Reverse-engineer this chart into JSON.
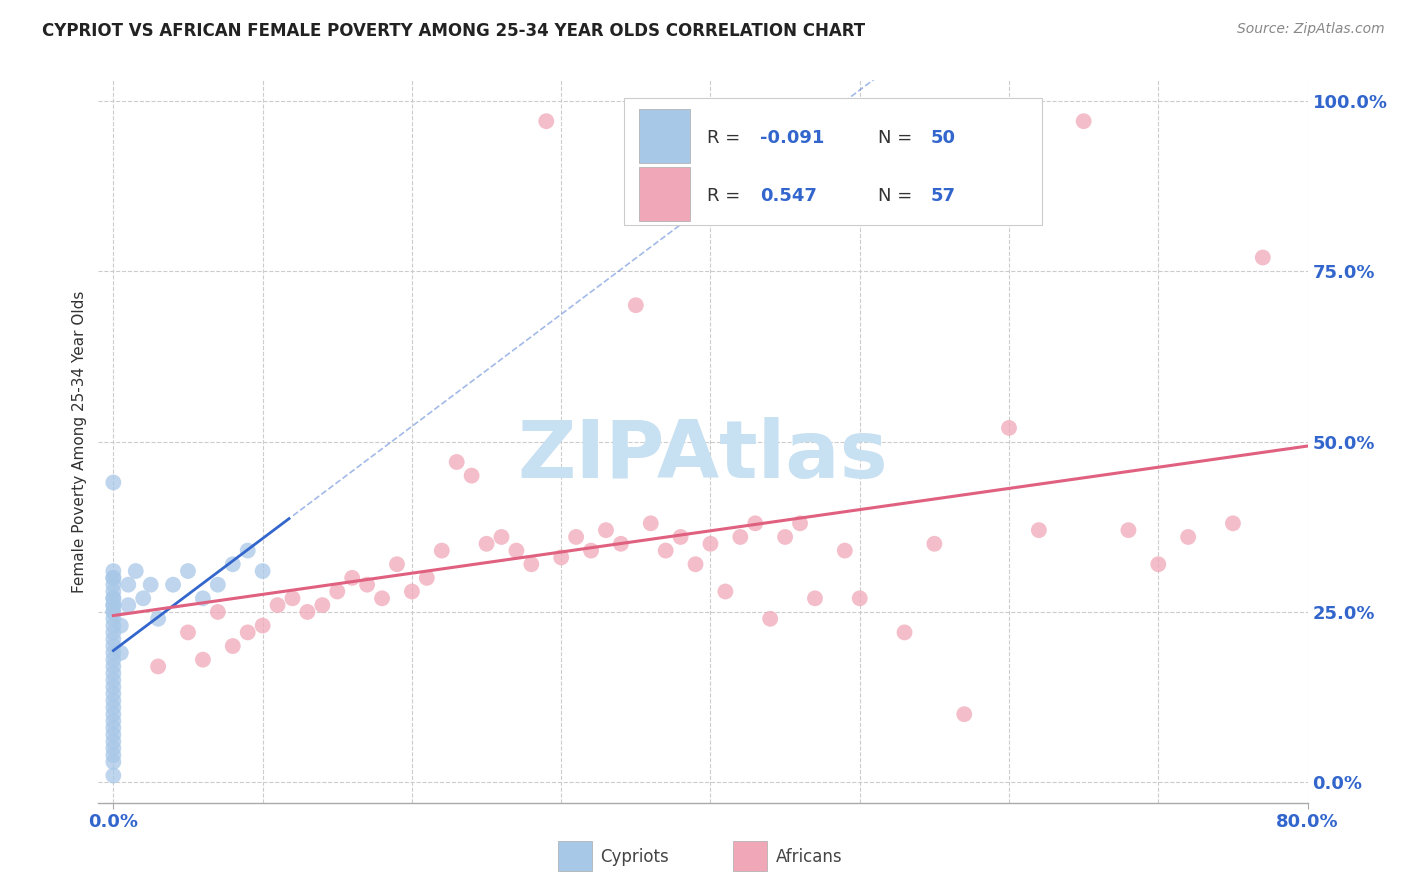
{
  "title": "CYPRIOT VS AFRICAN FEMALE POVERTY AMONG 25-34 YEAR OLDS CORRELATION CHART",
  "source": "Source: ZipAtlas.com",
  "ylabel_label": "Female Poverty Among 25-34 Year Olds",
  "right_ytick_labels": [
    "0.0%",
    "25.0%",
    "50.0%",
    "75.0%",
    "100.0%"
  ],
  "right_ytick_vals": [
    0,
    25,
    50,
    75,
    100
  ],
  "xtick_labels": [
    "0.0%",
    "80.0%"
  ],
  "xtick_vals": [
    0,
    80
  ],
  "legend_cypriot_R": "-0.091",
  "legend_cypriot_N": "50",
  "legend_african_R": "0.547",
  "legend_african_N": "57",
  "cypriot_color": "#a8c8e8",
  "african_color": "#f0a8b8",
  "cypriot_line_color": "#3366cc",
  "african_line_color": "#e06080",
  "watermark": "ZIPAtlas",
  "watermark_color_r": 0.78,
  "watermark_color_g": 0.88,
  "watermark_color_b": 0.95,
  "background_color": "#ffffff",
  "xlim": [
    -1,
    80
  ],
  "ylim": [
    -3,
    103
  ],
  "cypriot_x": [
    0.0,
    0.0,
    0.0,
    0.0,
    0.0,
    0.0,
    0.0,
    0.0,
    0.0,
    0.0,
    0.0,
    0.0,
    0.0,
    0.0,
    0.0,
    0.0,
    0.0,
    0.0,
    0.0,
    0.0,
    0.0,
    0.0,
    0.0,
    0.0,
    0.0,
    0.0,
    0.0,
    0.5,
    0.5,
    1.0,
    1.0,
    1.5,
    2.0,
    2.5,
    3.0,
    4.0,
    5.0,
    6.0,
    7.0,
    8.0,
    9.0,
    10.0,
    0.0,
    0.0,
    0.0,
    0.0,
    0.0,
    0.0,
    0.0,
    0.0
  ],
  "cypriot_y": [
    3.0,
    4.0,
    5.0,
    6.0,
    7.0,
    8.0,
    9.0,
    10.0,
    11.0,
    12.0,
    13.0,
    14.0,
    15.0,
    16.0,
    17.0,
    18.0,
    19.0,
    20.0,
    21.0,
    22.0,
    23.0,
    24.0,
    25.0,
    26.0,
    27.0,
    28.0,
    30.0,
    19.0,
    23.0,
    26.0,
    29.0,
    31.0,
    27.0,
    29.0,
    24.0,
    29.0,
    31.0,
    27.0,
    29.0,
    32.0,
    34.0,
    31.0,
    44.0,
    31.0,
    1.0,
    29.0,
    30.0,
    27.0,
    26.0,
    25.0
  ],
  "african_x": [
    3.0,
    5.0,
    6.0,
    7.0,
    8.0,
    9.0,
    10.0,
    11.0,
    12.0,
    13.0,
    14.0,
    15.0,
    16.0,
    17.0,
    18.0,
    19.0,
    20.0,
    21.0,
    22.0,
    23.0,
    24.0,
    25.0,
    26.0,
    27.0,
    28.0,
    29.0,
    30.0,
    31.0,
    32.0,
    33.0,
    34.0,
    35.0,
    36.0,
    37.0,
    38.0,
    39.0,
    40.0,
    41.0,
    42.0,
    43.0,
    44.0,
    45.0,
    46.0,
    47.0,
    49.0,
    50.0,
    53.0,
    55.0,
    57.0,
    60.0,
    62.0,
    65.0,
    68.0,
    70.0,
    72.0,
    75.0,
    77.0
  ],
  "african_y": [
    17.0,
    22.0,
    18.0,
    25.0,
    20.0,
    22.0,
    23.0,
    26.0,
    27.0,
    25.0,
    26.0,
    28.0,
    30.0,
    29.0,
    27.0,
    32.0,
    28.0,
    30.0,
    34.0,
    47.0,
    45.0,
    35.0,
    36.0,
    34.0,
    32.0,
    97.0,
    33.0,
    36.0,
    34.0,
    37.0,
    35.0,
    70.0,
    38.0,
    34.0,
    36.0,
    32.0,
    35.0,
    28.0,
    36.0,
    38.0,
    24.0,
    36.0,
    38.0,
    27.0,
    34.0,
    27.0,
    22.0,
    35.0,
    10.0,
    52.0,
    37.0,
    97.0,
    37.0,
    32.0,
    36.0,
    38.0,
    77.0
  ]
}
